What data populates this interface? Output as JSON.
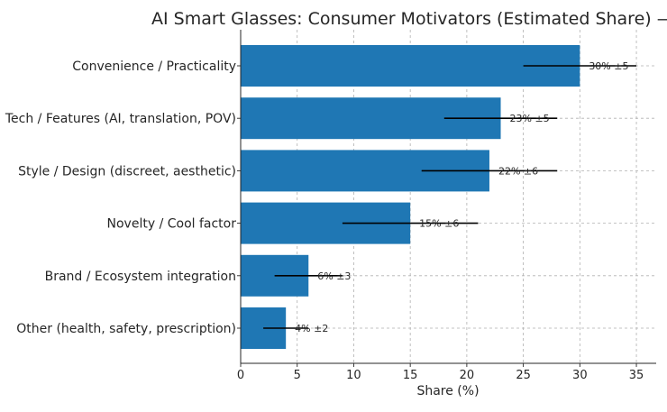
{
  "chart_data": {
    "type": "bar",
    "orientation": "horizontal",
    "title": "AI Smart Glasses: Consumer Motivators (Estimated Share) — H",
    "xlabel": "Share (%)",
    "ylabel": "",
    "xlim": [
      0,
      36.75
    ],
    "xticks": [
      0,
      5,
      10,
      15,
      20,
      25,
      30,
      35
    ],
    "grid": true,
    "bar_color": "#1f77b4",
    "errorbar_color": "#000000",
    "categories": [
      "Convenience / Practicality",
      "Tech / Features (AI, translation, POV)",
      "Style / Design (discreet, aesthetic)",
      "Novelty / Cool factor",
      "Brand / Ecosystem integration",
      "Other (health, safety, prescription)"
    ],
    "values": [
      30,
      23,
      22,
      15,
      6,
      4
    ],
    "errors": [
      5,
      5,
      6,
      6,
      3,
      2
    ],
    "data_labels": [
      "30% ±5",
      "23% ±5",
      "22% ±6",
      "15% ±6",
      "6% ±3",
      "4% ±2"
    ]
  }
}
